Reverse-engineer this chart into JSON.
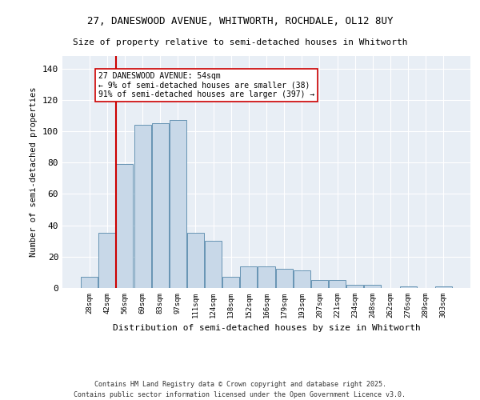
{
  "title1": "27, DANESWOOD AVENUE, WHITWORTH, ROCHDALE, OL12 8UY",
  "title2": "Size of property relative to semi-detached houses in Whitworth",
  "xlabel": "Distribution of semi-detached houses by size in Whitworth",
  "ylabel": "Number of semi-detached properties",
  "bar_labels": [
    "28sqm",
    "42sqm",
    "56sqm",
    "69sqm",
    "83sqm",
    "97sqm",
    "111sqm",
    "124sqm",
    "138sqm",
    "152sqm",
    "166sqm",
    "179sqm",
    "193sqm",
    "207sqm",
    "221sqm",
    "234sqm",
    "248sqm",
    "262sqm",
    "276sqm",
    "289sqm",
    "303sqm"
  ],
  "bar_values": [
    7,
    35,
    79,
    104,
    105,
    107,
    35,
    30,
    7,
    14,
    14,
    12,
    11,
    5,
    5,
    2,
    2,
    0,
    1,
    0,
    1
  ],
  "bar_color": "#c8d8e8",
  "bar_edge_color": "#5588aa",
  "annotation_text": "27 DANESWOOD AVENUE: 54sqm\n← 9% of semi-detached houses are smaller (38)\n91% of semi-detached houses are larger (397) →",
  "vline_color": "#cc0000",
  "ylim": [
    0,
    148
  ],
  "yticks": [
    0,
    20,
    40,
    60,
    80,
    100,
    120,
    140
  ],
  "bg_color": "#e8eef5",
  "footer_line1": "Contains HM Land Registry data © Crown copyright and database right 2025.",
  "footer_line2": "Contains public sector information licensed under the Open Government Licence v3.0."
}
